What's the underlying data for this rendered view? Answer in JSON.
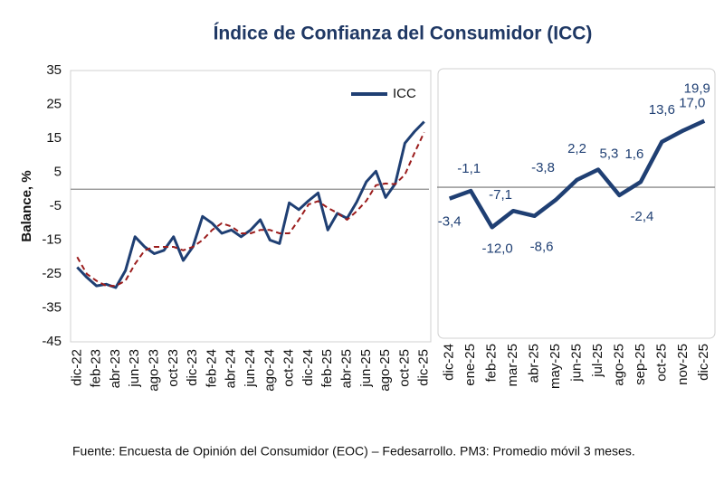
{
  "title": "Índice de Confianza del Consumidor (ICC)",
  "source": "Fuente: Encuesta de Opinión del Consumidor (EOC) – Fedesarrollo. PM3: Promedio móvil 3 meses.",
  "chart_data": [
    {
      "type": "line",
      "y_label": "Balance, %",
      "categories": [
        "dic-22",
        null,
        "feb-23",
        null,
        "abr-23",
        null,
        "jun-23",
        null,
        "ago-23",
        null,
        "oct-23",
        null,
        "dic-23",
        null,
        "feb-24",
        null,
        "abr-24",
        null,
        "jun-24",
        null,
        "ago-24",
        null,
        "oct-24",
        null,
        "dic-24",
        null,
        "feb-25",
        null,
        "abr-25",
        null,
        "jun-25",
        null,
        "ago-25",
        null,
        "oct-25",
        null,
        "dic-25"
      ],
      "series": [
        {
          "name": "ICC",
          "color": "#1f3f73",
          "values": [
            -23,
            -26,
            -28.5,
            -28,
            -29,
            -24,
            -14,
            -17,
            -19,
            -18,
            -14,
            -21,
            -17,
            -8,
            -10,
            -13,
            -12,
            -14,
            -12,
            -9,
            -15,
            -16,
            -4,
            -6,
            -3.4,
            -1.1,
            -12.0,
            -7.1,
            -8.6,
            -3.8,
            2.2,
            5.3,
            -2.4,
            1.6,
            13.6,
            17.0,
            19.9
          ]
        },
        {
          "color": "#9b1c1c",
          "dashed": true,
          "values": [
            -20,
            -25,
            -27,
            -28.5,
            -28.5,
            -27,
            -22,
            -18,
            -17,
            -17,
            -17,
            -18,
            -17,
            -15,
            -12,
            -10,
            -11,
            -13,
            -13,
            -12,
            -12,
            -13,
            -13,
            -9,
            -4.5,
            -3.5,
            -5.5,
            -7,
            -9,
            -6.5,
            -3.4,
            1.2,
            1.7,
            1.5,
            4.3,
            10.7,
            16.8
          ]
        }
      ],
      "ylim": [
        -45,
        35
      ],
      "yticks": [
        35,
        25,
        15,
        5,
        -5,
        -15,
        -25,
        -35,
        -45
      ],
      "legend": "upper right"
    },
    {
      "type": "line",
      "categories": [
        "dic-24",
        "ene-25",
        "feb-25",
        "mar-25",
        "abr-25",
        "may-25",
        "jun-25",
        "jul-25",
        "ago-25",
        "sep-25",
        "oct-25",
        "nov-25",
        "dic-25"
      ],
      "series": [
        {
          "color": "#1f3f73",
          "values": [
            -3.4,
            -1.1,
            -12.0,
            -7.1,
            -8.6,
            -3.8,
            2.2,
            5.3,
            -2.4,
            1.6,
            13.6,
            17.0,
            19.9
          ],
          "value_labels": [
            "-3,4",
            "-1,1",
            "-12,0",
            "-7,1",
            "-8,6",
            "-3,8",
            "2,2",
            "5,3",
            "-2,4",
            "1,6",
            "13,6",
            "17,0",
            "19,9"
          ]
        }
      ],
      "ylim": [
        -45,
        35
      ]
    }
  ]
}
